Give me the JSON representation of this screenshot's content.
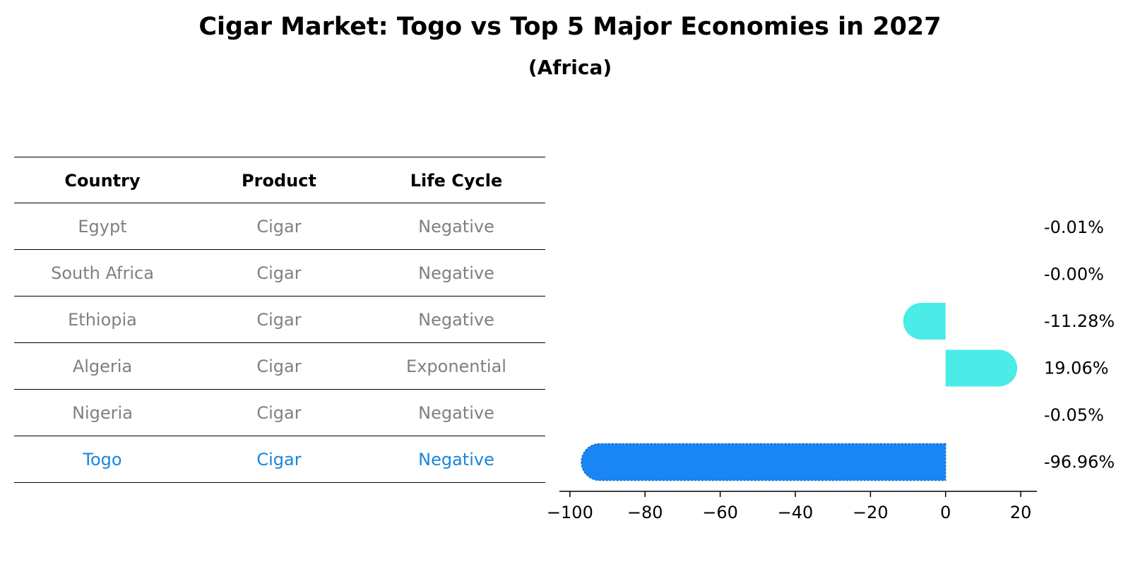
{
  "title": "Cigar Market: Togo vs Top 5 Major Economies in 2027",
  "subtitle": "(Africa)",
  "table": {
    "headers": [
      "Country",
      "Product",
      "Life Cycle"
    ],
    "rows": [
      {
        "cells": [
          "Egypt",
          "Cigar",
          "Negative"
        ],
        "highlight": false
      },
      {
        "cells": [
          "South Africa",
          "Cigar",
          "Negative"
        ],
        "highlight": false
      },
      {
        "cells": [
          "Ethiopia",
          "Cigar",
          "Negative"
        ],
        "highlight": false
      },
      {
        "cells": [
          "Algeria",
          "Cigar",
          "Exponential"
        ],
        "highlight": false
      },
      {
        "cells": [
          "Nigeria",
          "Cigar",
          "Negative"
        ],
        "highlight": false
      },
      {
        "cells": [
          "Togo",
          "Cigar",
          "Negative"
        ],
        "highlight": true
      }
    ]
  },
  "colors": {
    "bar": "#4bebe8",
    "highlight_bar": "#1a86f5",
    "table_text": "#808080",
    "highlight_text": "#1a86d8"
  },
  "chart_data": {
    "type": "bar",
    "orientation": "horizontal",
    "categories": [
      "Egypt",
      "South Africa",
      "Ethiopia",
      "Algeria",
      "Nigeria",
      "Togo"
    ],
    "values": [
      -0.01,
      -0.0,
      -11.28,
      19.06,
      -0.05,
      -96.96
    ],
    "value_labels": [
      "-0.01%",
      "-0.00%",
      "-11.28%",
      "19.06%",
      "-0.05%",
      "-96.96%"
    ],
    "highlight_index": 5,
    "xlim": [
      -102.8,
      24.3
    ],
    "xticks": [
      -100,
      -80,
      -60,
      -40,
      -20,
      0,
      20
    ],
    "xtick_labels": [
      "−100",
      "−80",
      "−60",
      "−40",
      "−20",
      "0",
      "20"
    ],
    "grid": false
  }
}
